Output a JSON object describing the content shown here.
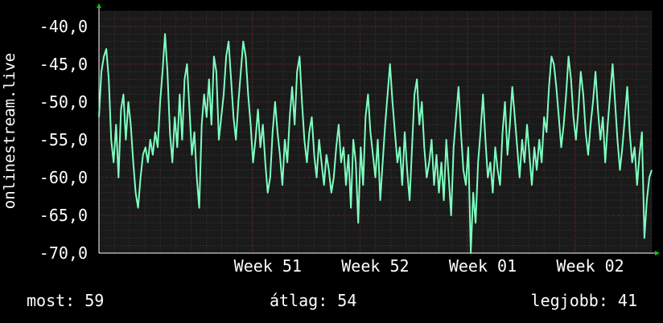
{
  "chart_data": {
    "type": "line",
    "ylabel": "onlinestream.live",
    "ylim": [
      -70,
      -38
    ],
    "yticks": [
      -40,
      -45,
      -50,
      -55,
      -60,
      -65,
      -70
    ],
    "ytick_labels": [
      "-40,0",
      "-45,0",
      "-50,0",
      "-55,0",
      "-60,0",
      "-65,0",
      "-70,0"
    ],
    "xlim": [
      0,
      36
    ],
    "xticks": [
      {
        "label": "Week 51",
        "x": 10
      },
      {
        "label": "Week 52",
        "x": 17
      },
      {
        "label": "Week 01",
        "x": 24
      },
      {
        "label": "Week 02",
        "x": 31
      }
    ],
    "grid": true,
    "colors": {
      "background": "#000000",
      "plot_area": "#1a1a1a",
      "grid": "#3a3a3a",
      "grid_red": "#5a2020",
      "line": "#7effc0",
      "axis": "#ffffff",
      "arrow": "#00cc00"
    },
    "series": [
      {
        "values": [
          -52,
          -46,
          -44,
          -43,
          -47,
          -55,
          -58,
          -53,
          -60,
          -51,
          -49,
          -55,
          -50,
          -53,
          -58,
          -62,
          -64,
          -60,
          -57,
          -56,
          -58,
          -55,
          -57,
          -54,
          -56,
          -50,
          -46,
          -41,
          -46,
          -54,
          -58,
          -52,
          -56,
          -49,
          -55,
          -47,
          -45,
          -51,
          -57,
          -54,
          -60,
          -64,
          -53,
          -49,
          -52,
          -47,
          -53,
          -44,
          -46,
          -55,
          -52,
          -49,
          -44,
          -42,
          -47,
          -52,
          -55,
          -50,
          -46,
          -42,
          -44,
          -49,
          -53,
          -58,
          -55,
          -51,
          -56,
          -53,
          -58,
          -62,
          -60,
          -54,
          -50,
          -54,
          -57,
          -61,
          -55,
          -58,
          -52,
          -48,
          -53,
          -46,
          -44,
          -50,
          -55,
          -58,
          -54,
          -52,
          -57,
          -60,
          -55,
          -58,
          -61,
          -57,
          -59,
          -62,
          -60,
          -56,
          -53,
          -58,
          -56,
          -61,
          -57,
          -64,
          -55,
          -58,
          -66,
          -56,
          -61,
          -52,
          -49,
          -54,
          -57,
          -60,
          -55,
          -63,
          -58,
          -53,
          -49,
          -45,
          -50,
          -54,
          -58,
          -56,
          -61,
          -54,
          -59,
          -63,
          -56,
          -49,
          -47,
          -53,
          -50,
          -56,
          -60,
          -58,
          -55,
          -61,
          -57,
          -62,
          -58,
          -63,
          -55,
          -60,
          -65,
          -56,
          -52,
          -48,
          -54,
          -59,
          -61,
          -56,
          -70,
          -62,
          -66,
          -58,
          -54,
          -49,
          -55,
          -60,
          -58,
          -62,
          -56,
          -59,
          -61,
          -54,
          -50,
          -57,
          -53,
          -48,
          -52,
          -56,
          -60,
          -55,
          -58,
          -53,
          -57,
          -61,
          -56,
          -59,
          -55,
          -58,
          -52,
          -54,
          -48,
          -44,
          -45,
          -48,
          -52,
          -56,
          -53,
          -49,
          -44,
          -47,
          -52,
          -55,
          -51,
          -46,
          -49,
          -54,
          -57,
          -53,
          -50,
          -46,
          -51,
          -55,
          -52,
          -58,
          -53,
          -49,
          -45,
          -50,
          -55,
          -59,
          -56,
          -52,
          -48,
          -54,
          -58,
          -56,
          -61,
          -57,
          -54,
          -68,
          -63,
          -60,
          -59
        ]
      }
    ]
  },
  "stats": {
    "now": "most: 59",
    "avg": "átlag: 54",
    "max": "legjobb: 41"
  }
}
